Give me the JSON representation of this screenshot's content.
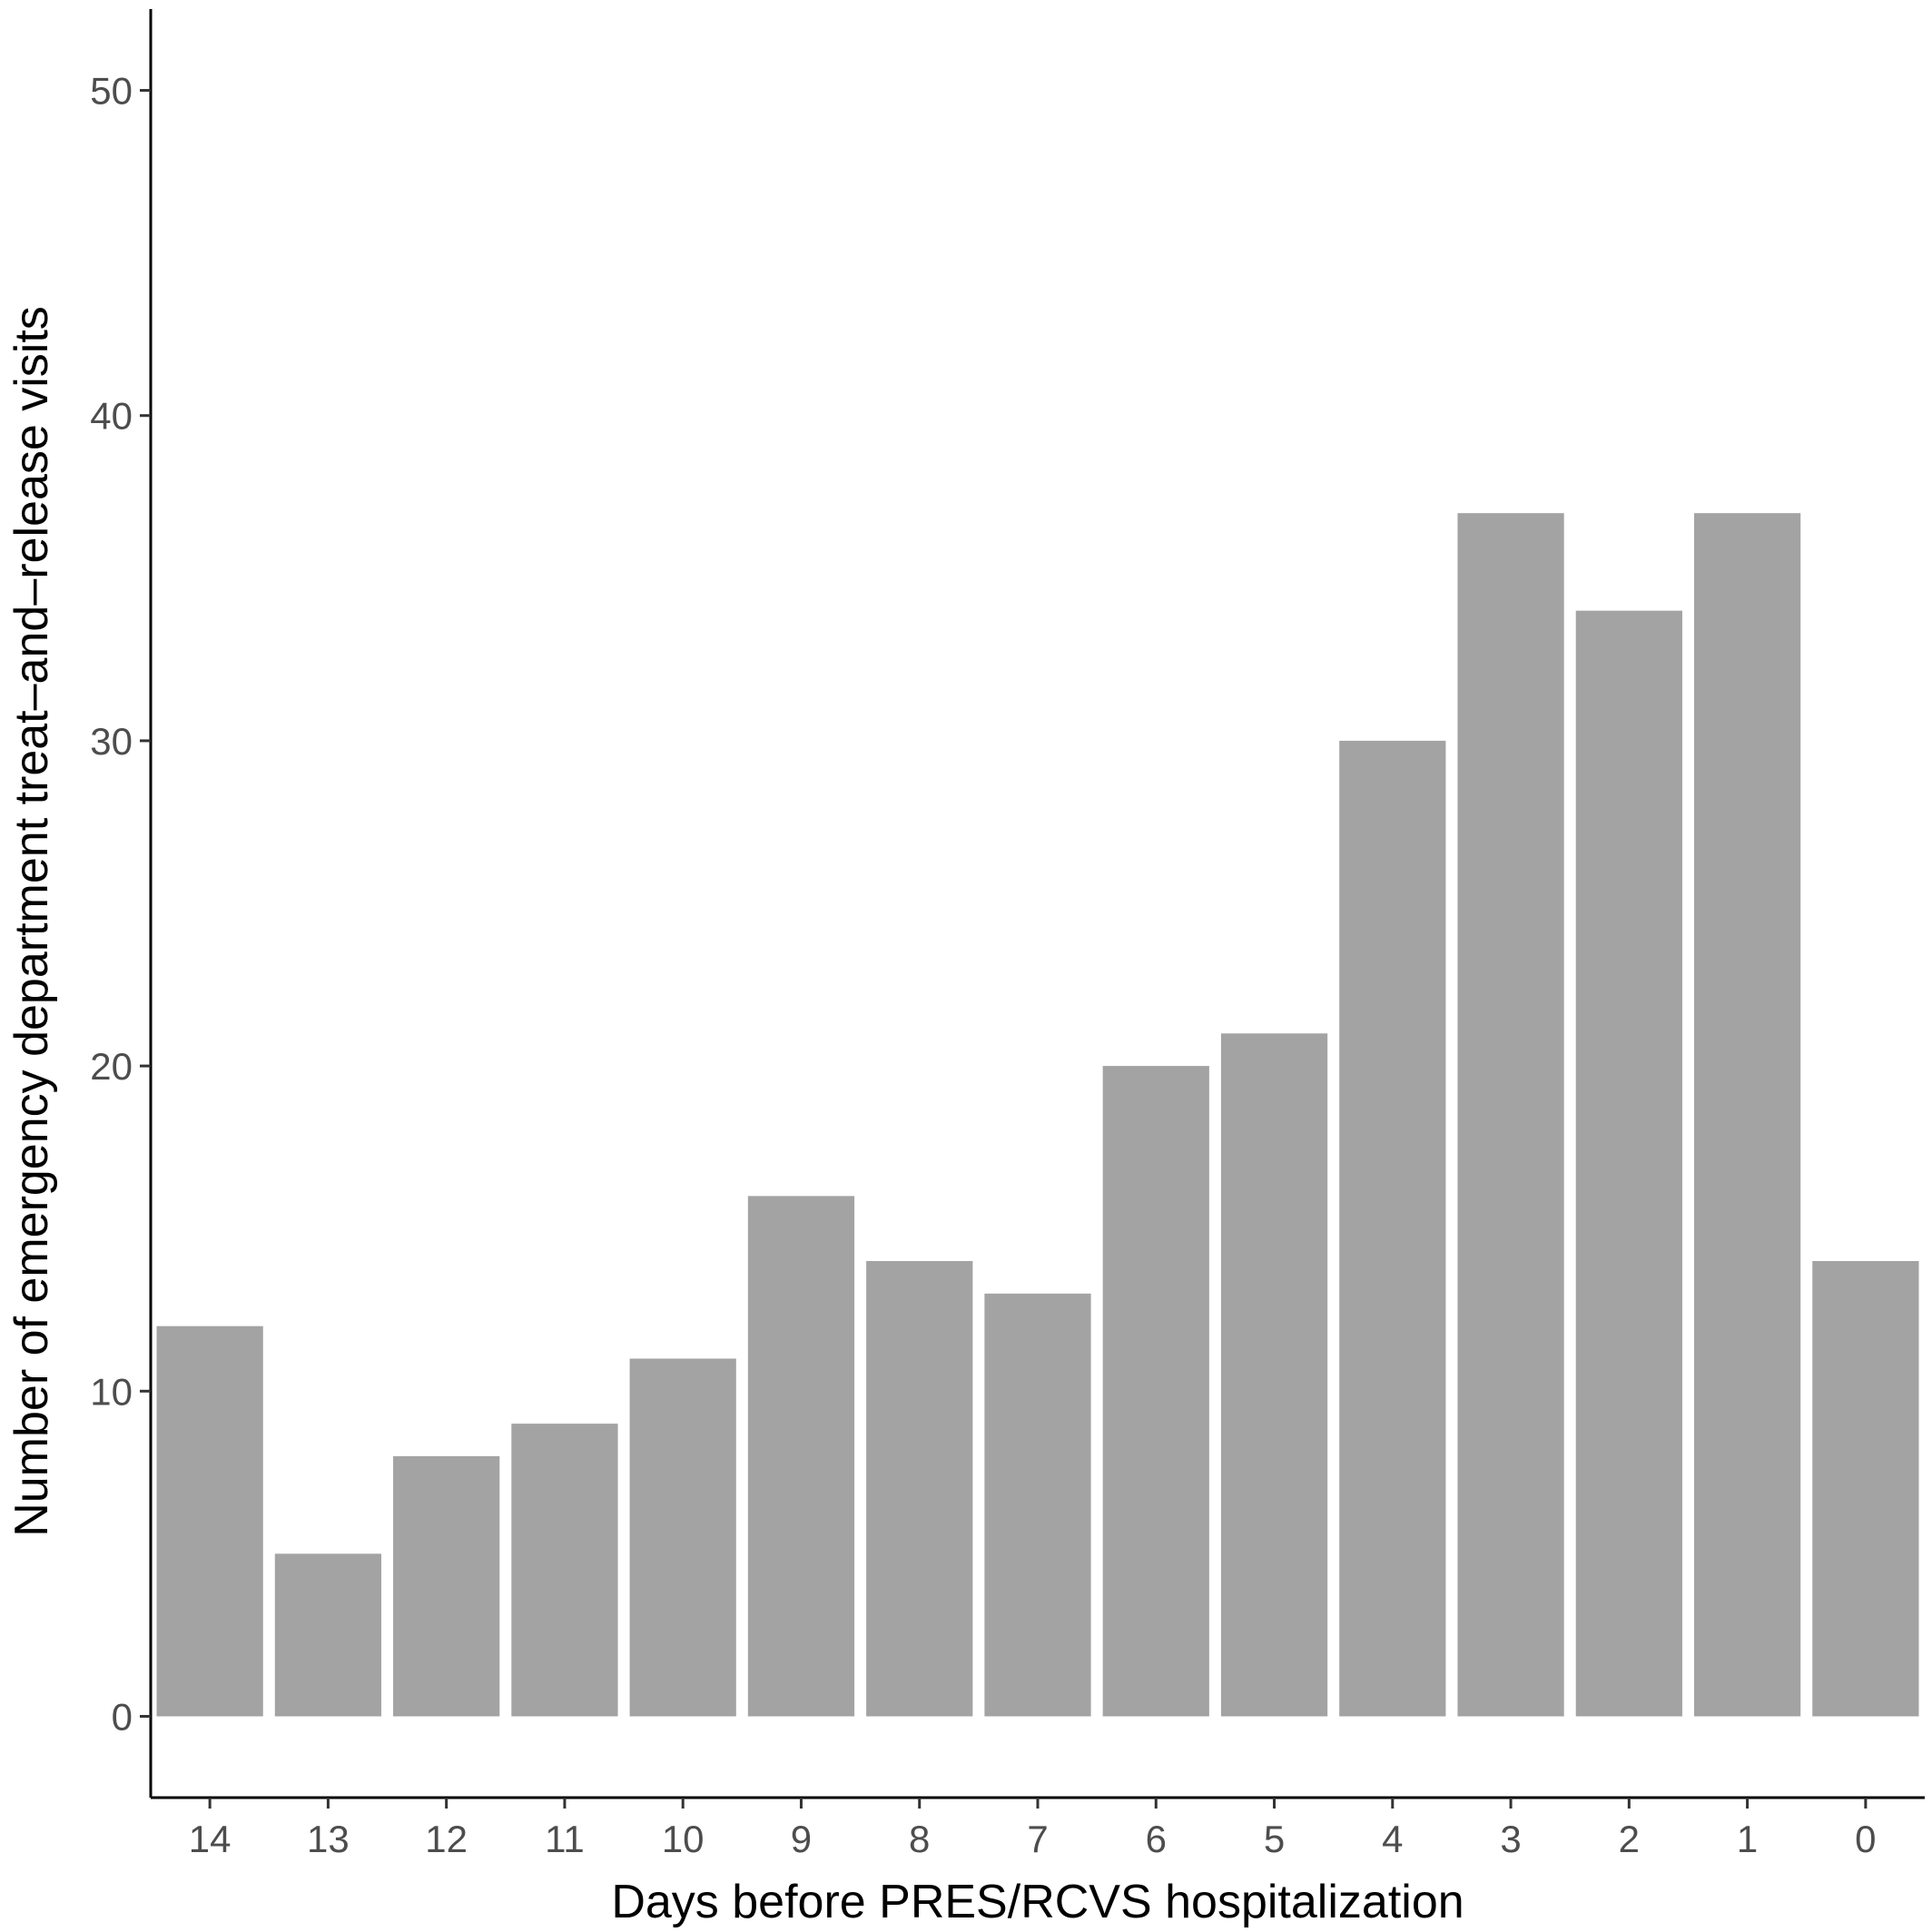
{
  "chart_data": {
    "type": "bar",
    "categories": [
      "14",
      "13",
      "12",
      "11",
      "10",
      "9",
      "8",
      "7",
      "6",
      "5",
      "4",
      "3",
      "2",
      "1",
      "0"
    ],
    "values": [
      12,
      5,
      8,
      9,
      11,
      16,
      14,
      13,
      20,
      21,
      30,
      37,
      34,
      37,
      14
    ],
    "xlabel": "Days before PRES/RCVS hospitalization",
    "ylabel": "Number of emergency department treat–and–release visits",
    "yticks": [
      "0",
      "10",
      "20",
      "30",
      "40",
      "50"
    ],
    "ylim": [
      -2.5,
      52.5
    ],
    "grid": false,
    "legend": "none",
    "colors": {
      "bar": "#a3a3a3",
      "axis": "#000000",
      "tick_text": "#4d4d4d"
    }
  }
}
